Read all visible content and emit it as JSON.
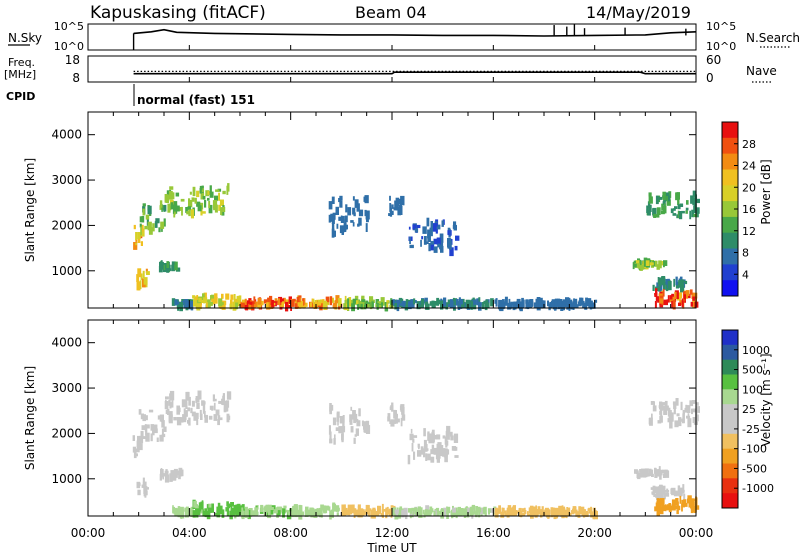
{
  "header": {
    "station": "Kapuskasing (fitACF)",
    "beam": "Beam 04",
    "date": "14/May/2019"
  },
  "noise_panel": {
    "left_label": "N.Sky",
    "right_label": "N.Search",
    "left_ticks": [
      "10^5",
      "10^0"
    ],
    "right_ticks": [
      "10^5",
      "10^0"
    ]
  },
  "freq_panel": {
    "left_label_1": "Freq.",
    "left_label_2": "[MHz]",
    "right_label": "Nave",
    "left_ticks": [
      "18",
      "8"
    ],
    "right_ticks": [
      "60",
      "0"
    ]
  },
  "cpid": {
    "label": "CPID",
    "mode_text": "normal (fast) 151"
  },
  "power_panel": {
    "ylabel": "Slant Range [km]",
    "colorbar_label": "Power [dB]",
    "colorbar_ticks": [
      "28",
      "24",
      "20",
      "16",
      "12",
      "8",
      "4"
    ],
    "colorbar_colors": [
      "#e81010",
      "#f05010",
      "#f28b12",
      "#f0c020",
      "#d8d028",
      "#98c838",
      "#48a848",
      "#2e8c68",
      "#2f6fa8",
      "#2040d0",
      "#1010f0"
    ]
  },
  "velocity_panel": {
    "ylabel": "Slant Range [km]",
    "colorbar_label": "Velocity [m s⁻¹]",
    "colorbar_ticks": [
      "1000",
      "500",
      "100",
      "25",
      "-25",
      "-100",
      "-500",
      "-1000"
    ],
    "colorbar_colors": [
      "#2030c8",
      "#2c5aa0",
      "#2e8a58",
      "#58c040",
      "#a8d890",
      "#c8c8c8",
      "#c8c8c8",
      "#f0c060",
      "#f0a020",
      "#f07010",
      "#e83010",
      "#e81010"
    ]
  },
  "x_axis": {
    "label": "Time UT",
    "ticks": [
      "00:00",
      "04:00",
      "08:00",
      "12:00",
      "16:00",
      "20:00",
      "00:00"
    ]
  },
  "chart_data": {
    "type": "heatmap",
    "x_unit": "hours UT",
    "xlim": [
      0,
      24
    ],
    "ylim": [
      180,
      4500
    ],
    "y_ticks": [
      1000,
      2000,
      3000,
      4000
    ],
    "noise_series": [
      [
        1.8,
        3.2
      ],
      [
        2.5,
        3.5
      ],
      [
        3.0,
        3.9
      ],
      [
        3.5,
        3.4
      ],
      [
        5.0,
        3.2
      ],
      [
        8.0,
        3.0
      ],
      [
        10.0,
        2.9
      ],
      [
        12.0,
        2.9
      ],
      [
        14.0,
        2.8
      ],
      [
        16.0,
        2.8
      ],
      [
        18.0,
        2.7
      ],
      [
        20.0,
        2.8
      ],
      [
        22.0,
        2.9
      ],
      [
        23.0,
        3.3
      ],
      [
        24.0,
        3.5
      ]
    ],
    "noise_spikes": [
      [
        18.4,
        4.8
      ],
      [
        18.9,
        4.5
      ],
      [
        19.2,
        4.9
      ],
      [
        19.6,
        4.2
      ],
      [
        21.2,
        4.3
      ],
      [
        23.6,
        4.1
      ]
    ],
    "frequency_series": [
      [
        1.8,
        10.4
      ],
      [
        12.0,
        10.4
      ],
      [
        12.1,
        11.2
      ],
      [
        21.8,
        11.2
      ],
      [
        22.0,
        10.4
      ],
      [
        24.0,
        10.4
      ]
    ],
    "nave_series": [
      [
        1.8,
        22
      ],
      [
        24.0,
        22
      ]
    ],
    "echo_regions": [
      {
        "t0": 1.75,
        "t1": 2.1,
        "r0": 1500,
        "r1": 2050,
        "power": 22,
        "velocity": 5
      },
      {
        "t0": 2.0,
        "t1": 3.0,
        "r0": 1850,
        "r1": 2500,
        "power": 12,
        "velocity": 5
      },
      {
        "t0": 3.0,
        "t1": 5.5,
        "r0": 2250,
        "r1": 2850,
        "power": 14,
        "velocity": 5
      },
      {
        "t0": 1.9,
        "t1": 2.3,
        "r0": 650,
        "r1": 1000,
        "power": 20,
        "velocity": 10
      },
      {
        "t0": 2.8,
        "t1": 3.6,
        "r0": 1000,
        "r1": 1150,
        "power": 10,
        "velocity": 10
      },
      {
        "t0": 3.3,
        "t1": 4.1,
        "r0": 200,
        "r1": 350,
        "power": 8,
        "velocity": 60
      },
      {
        "t0": 4.1,
        "t1": 6.0,
        "r0": 200,
        "r1": 450,
        "power": 18,
        "velocity": 120
      },
      {
        "t0": 6.0,
        "t1": 8.0,
        "r0": 200,
        "r1": 380,
        "power": 28,
        "velocity": 90
      },
      {
        "t0": 8.0,
        "t1": 10.0,
        "r0": 200,
        "r1": 380,
        "power": 22,
        "velocity": 40
      },
      {
        "t0": 10.0,
        "t1": 12.0,
        "r0": 200,
        "r1": 350,
        "power": 14,
        "velocity": -60
      },
      {
        "t0": 12.0,
        "t1": 16.0,
        "r0": 200,
        "r1": 330,
        "power": 8,
        "velocity": 30
      },
      {
        "t0": 16.0,
        "t1": 20.0,
        "r0": 200,
        "r1": 330,
        "power": 6,
        "velocity": -80
      },
      {
        "t0": 9.5,
        "t1": 11.0,
        "r0": 1800,
        "r1": 2600,
        "power": 6,
        "velocity": 5
      },
      {
        "t0": 11.8,
        "t1": 12.4,
        "r0": 2200,
        "r1": 2600,
        "power": 6,
        "velocity": 5
      },
      {
        "t0": 12.6,
        "t1": 14.5,
        "r0": 1400,
        "r1": 2100,
        "power": 5,
        "velocity": 5
      },
      {
        "t0": 21.5,
        "t1": 22.8,
        "r0": 1050,
        "r1": 1200,
        "power": 14,
        "velocity": 10
      },
      {
        "t0": 22.2,
        "t1": 23.5,
        "r0": 600,
        "r1": 800,
        "power": 8,
        "velocity": 10
      },
      {
        "t0": 22.0,
        "t1": 24.0,
        "r0": 2200,
        "r1": 2700,
        "power": 10,
        "velocity": 5
      },
      {
        "t0": 22.3,
        "t1": 24.0,
        "r0": 250,
        "r1": 550,
        "power": 28,
        "velocity": -200
      }
    ]
  }
}
